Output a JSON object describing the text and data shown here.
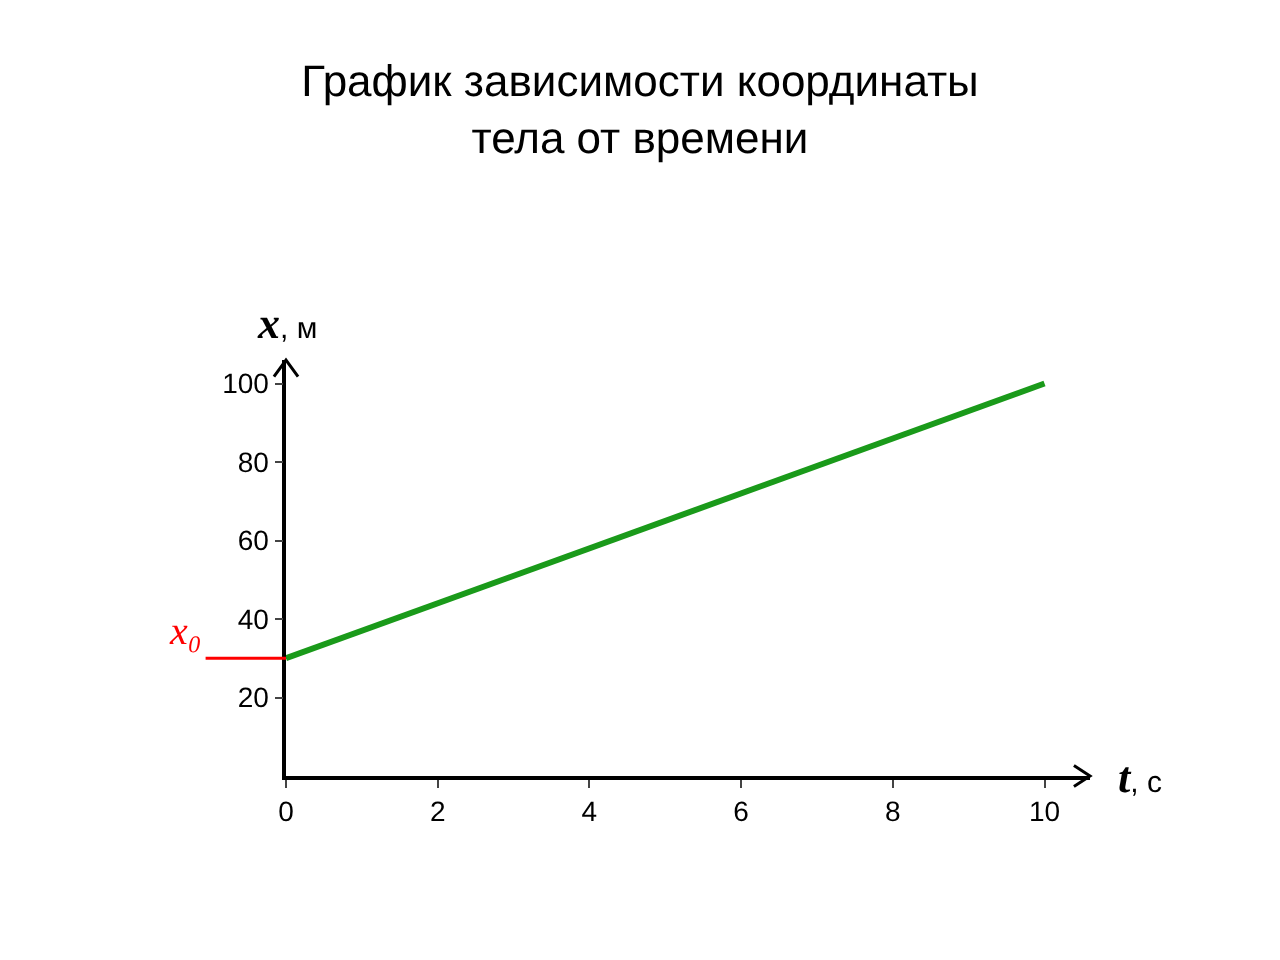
{
  "chart_data": {
    "type": "line",
    "title": "График зависимости координаты\nтела от времени",
    "xlabel": "t, с",
    "ylabel": "x, м",
    "x": [
      0,
      10
    ],
    "series": [
      {
        "color": "#1a9a1a",
        "values": [
          30,
          100
        ]
      }
    ],
    "xlim": [
      0,
      10.6
    ],
    "ylim": [
      0,
      106
    ],
    "xticks": [
      0,
      2,
      4,
      6,
      8,
      10
    ],
    "yticks": [
      20,
      40,
      60,
      80,
      100
    ],
    "ref_lines": [
      {
        "axis": "y",
        "value": 30,
        "label": "x₀",
        "color": "#ff0000"
      }
    ],
    "marker": "none",
    "line_style": "solid"
  }
}
